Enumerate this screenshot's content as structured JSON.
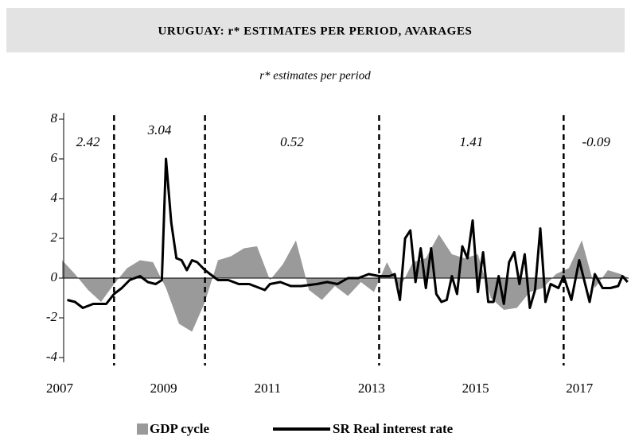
{
  "chart_data": {
    "type": "line",
    "title": "URUGUAY: r* ESTIMATES PER PERIOD, AVARAGES",
    "subtitle": "r* estimates per period",
    "xlim": [
      2007,
      2017.9
    ],
    "xticks": [
      2007,
      2009,
      2011,
      2013,
      2015,
      2017
    ],
    "ylim": [
      -4,
      8
    ],
    "yticks": [
      8,
      6,
      4,
      2,
      0,
      -2,
      -4
    ],
    "period_breaks": [
      2008,
      2009.75,
      2013.1,
      2016.65
    ],
    "period_estimates": [
      2.42,
      3.04,
      0.52,
      1.41,
      -0.09
    ],
    "series": [
      {
        "name": "GDP cycle",
        "color": "#9a9a9a",
        "type": "area",
        "x": [
          2007.0,
          2007.25,
          2007.5,
          2007.75,
          2008.0,
          2008.25,
          2008.5,
          2008.75,
          2009.0,
          2009.25,
          2009.5,
          2009.75,
          2010.0,
          2010.25,
          2010.5,
          2010.75,
          2011.0,
          2011.25,
          2011.5,
          2011.75,
          2012.0,
          2012.25,
          2012.5,
          2012.75,
          2013.0,
          2013.25,
          2013.5,
          2013.75,
          2014.0,
          2014.25,
          2014.5,
          2014.75,
          2015.0,
          2015.25,
          2015.5,
          2015.75,
          2016.0,
          2016.25,
          2016.5,
          2016.75,
          2017.0,
          2017.25,
          2017.5,
          2017.75,
          2017.9
        ],
        "values": [
          0.9,
          0.2,
          -0.6,
          -1.2,
          -0.3,
          0.5,
          0.9,
          0.8,
          -0.5,
          -2.3,
          -2.7,
          -1.2,
          0.9,
          1.1,
          1.5,
          1.6,
          -0.1,
          0.7,
          1.9,
          -0.6,
          -1.1,
          -0.4,
          -0.9,
          -0.2,
          -0.7,
          0.8,
          -0.5,
          0.8,
          1.0,
          2.2,
          1.2,
          1.0,
          1.2,
          -1.0,
          -1.6,
          -1.5,
          -0.7,
          -0.5,
          0.2,
          0.5,
          1.9,
          -0.5,
          0.4,
          0.2,
          0.0
        ]
      },
      {
        "name": "SR Real interest rate",
        "color": "#000000",
        "type": "line",
        "x": [
          2007.1,
          2007.25,
          2007.4,
          2007.6,
          2007.85,
          2008.0,
          2008.15,
          2008.3,
          2008.5,
          2008.65,
          2008.8,
          2008.92,
          2009.0,
          2009.1,
          2009.2,
          2009.3,
          2009.4,
          2009.5,
          2009.6,
          2009.75,
          2009.9,
          2010.0,
          2010.2,
          2010.4,
          2010.6,
          2010.9,
          2011.0,
          2011.2,
          2011.4,
          2011.6,
          2011.9,
          2012.1,
          2012.3,
          2012.5,
          2012.7,
          2012.9,
          2013.1,
          2013.3,
          2013.4,
          2013.5,
          2013.6,
          2013.7,
          2013.8,
          2013.9,
          2014.0,
          2014.1,
          2014.2,
          2014.3,
          2014.4,
          2014.5,
          2014.6,
          2014.7,
          2014.8,
          2014.9,
          2015.0,
          2015.1,
          2015.2,
          2015.3,
          2015.4,
          2015.5,
          2015.6,
          2015.7,
          2015.8,
          2015.9,
          2016.0,
          2016.1,
          2016.2,
          2016.3,
          2016.4,
          2016.55,
          2016.65,
          2016.8,
          2016.95,
          2017.15,
          2017.25,
          2017.4,
          2017.55,
          2017.7,
          2017.78,
          2017.88
        ],
        "values": [
          -1.1,
          -1.2,
          -1.5,
          -1.3,
          -1.3,
          -0.8,
          -0.5,
          -0.1,
          0.1,
          -0.2,
          -0.3,
          -0.1,
          6.0,
          2.8,
          1.0,
          0.9,
          0.4,
          0.9,
          0.8,
          0.4,
          0.1,
          -0.1,
          -0.1,
          -0.3,
          -0.3,
          -0.6,
          -0.3,
          -0.2,
          -0.4,
          -0.4,
          -0.3,
          -0.2,
          -0.3,
          0.0,
          0.0,
          0.2,
          0.1,
          0.1,
          0.2,
          -1.1,
          2.0,
          2.4,
          -0.2,
          1.5,
          -0.5,
          1.5,
          -0.8,
          -1.2,
          -1.1,
          0.1,
          -0.8,
          1.6,
          1.0,
          2.9,
          -0.7,
          1.3,
          -1.2,
          -1.2,
          0.1,
          -1.3,
          0.8,
          1.3,
          -0.3,
          1.2,
          -1.5,
          -0.6,
          2.5,
          -1.2,
          -0.3,
          -0.5,
          0.1,
          -1.1,
          0.9,
          -1.2,
          0.2,
          -0.5,
          -0.5,
          -0.4,
          0.1,
          -0.2
        ]
      }
    ]
  }
}
